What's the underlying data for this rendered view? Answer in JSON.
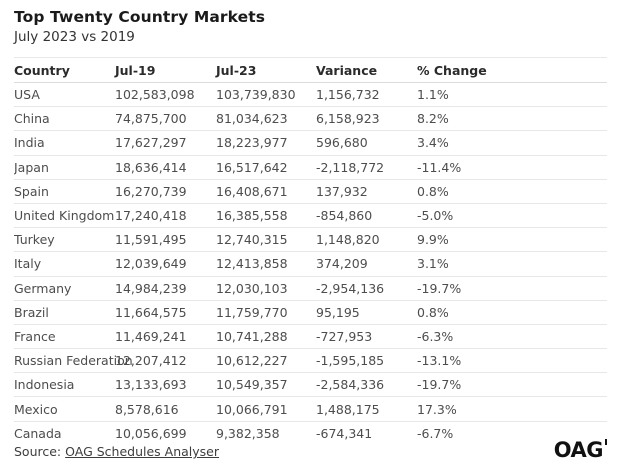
{
  "header": {
    "title": "Top Twenty Country Markets",
    "subtitle": "July 2023 vs 2019"
  },
  "chart_data": {
    "type": "table",
    "title": "Top Twenty Country Markets",
    "subtitle": "July 2023 vs 2019",
    "columns": [
      "Country",
      "Jul-19",
      "Jul-23",
      "Variance",
      "% Change"
    ],
    "rows": [
      [
        "USA",
        "102,583,098",
        "103,739,830",
        "1,156,732",
        "1.1%"
      ],
      [
        "China",
        "74,875,700",
        "81,034,623",
        "6,158,923",
        "8.2%"
      ],
      [
        "India",
        "17,627,297",
        "18,223,977",
        "596,680",
        "3.4%"
      ],
      [
        "Japan",
        "18,636,414",
        "16,517,642",
        "-2,118,772",
        "-11.4%"
      ],
      [
        "Spain",
        "16,270,739",
        "16,408,671",
        "137,932",
        "0.8%"
      ],
      [
        "United Kingdom",
        "17,240,418",
        "16,385,558",
        "-854,860",
        "-5.0%"
      ],
      [
        "Turkey",
        "11,591,495",
        "12,740,315",
        "1,148,820",
        "9.9%"
      ],
      [
        "Italy",
        "12,039,649",
        "12,413,858",
        "374,209",
        "3.1%"
      ],
      [
        "Germany",
        "14,984,239",
        "12,030,103",
        "-2,954,136",
        "-19.7%"
      ],
      [
        "Brazil",
        "11,664,575",
        "11,759,770",
        "95,195",
        "0.8%"
      ],
      [
        "France",
        "11,469,241",
        "10,741,288",
        "-727,953",
        "-6.3%"
      ],
      [
        "Russian Federation",
        "12,207,412",
        "10,612,227",
        "-1,595,185",
        "-13.1%"
      ],
      [
        "Indonesia",
        "13,133,693",
        "10,549,357",
        "-2,584,336",
        "-19.7%"
      ],
      [
        "Mexico",
        "8,578,616",
        "10,066,791",
        "1,488,175",
        "17.3%"
      ],
      [
        "Canada",
        "10,056,699",
        "9,382,358",
        "-674,341",
        "-6.7%"
      ]
    ]
  },
  "footer": {
    "source_prefix": "Source: ",
    "source_link_label": "OAG Schedules Analyser",
    "logo_text": "OAG"
  }
}
